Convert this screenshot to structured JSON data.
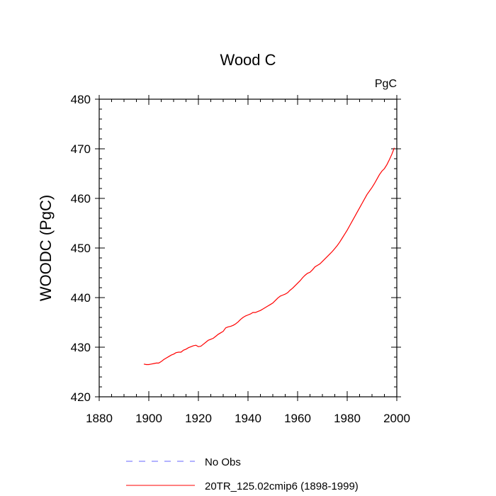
{
  "chart_data": {
    "type": "line",
    "title": "Wood C",
    "subtitle": "PgC",
    "xlabel": "",
    "ylabel": "WOODC  (PgC)",
    "xlim": [
      1880,
      2000
    ],
    "ylim": [
      420,
      480
    ],
    "xticks": [
      1880,
      1900,
      1920,
      1940,
      1960,
      1980,
      2000
    ],
    "yticks": [
      420,
      430,
      440,
      450,
      460,
      470,
      480
    ],
    "grid": false,
    "legend_position": "bottom",
    "colors": {
      "model": "#ff0000",
      "obs": "#0000ff"
    },
    "legend": [
      {
        "label": "No Obs",
        "style": "dashed",
        "color": "#0000ff"
      },
      {
        "label": "20TR_125.02cmip6 (1898-1999)",
        "style": "solid",
        "color": "#ff0000"
      }
    ],
    "series": [
      {
        "name": "20TR_125.02cmip6 (1898-1999)",
        "x": [
          1898,
          1899,
          1900,
          1901,
          1902,
          1903,
          1904,
          1905,
          1906,
          1907,
          1908,
          1909,
          1910,
          1911,
          1912,
          1913,
          1914,
          1915,
          1916,
          1917,
          1918,
          1919,
          1920,
          1921,
          1922,
          1923,
          1924,
          1925,
          1926,
          1927,
          1928,
          1929,
          1930,
          1931,
          1932,
          1933,
          1934,
          1935,
          1936,
          1937,
          1938,
          1939,
          1940,
          1941,
          1942,
          1943,
          1944,
          1945,
          1946,
          1947,
          1948,
          1949,
          1950,
          1951,
          1952,
          1953,
          1954,
          1955,
          1956,
          1957,
          1958,
          1959,
          1960,
          1961,
          1962,
          1963,
          1964,
          1965,
          1966,
          1967,
          1968,
          1969,
          1970,
          1971,
          1972,
          1973,
          1974,
          1975,
          1976,
          1977,
          1978,
          1979,
          1980,
          1981,
          1982,
          1983,
          1984,
          1985,
          1986,
          1987,
          1988,
          1989,
          1990,
          1991,
          1992,
          1993,
          1994,
          1995,
          1996,
          1997,
          1998,
          1999
        ],
        "y": [
          426.6,
          426.5,
          426.5,
          426.6,
          426.7,
          426.8,
          426.8,
          427.1,
          427.5,
          427.8,
          428.1,
          428.4,
          428.6,
          428.9,
          429.0,
          429.0,
          429.4,
          429.6,
          429.9,
          430.1,
          430.3,
          430.4,
          430.1,
          430.2,
          430.6,
          431.0,
          431.4,
          431.6,
          431.8,
          432.2,
          432.6,
          432.9,
          433.2,
          433.9,
          434.1,
          434.2,
          434.4,
          434.7,
          435.1,
          435.6,
          436.0,
          436.3,
          436.5,
          436.7,
          437.0,
          437.0,
          437.2,
          437.4,
          437.7,
          438.0,
          438.3,
          438.6,
          438.9,
          439.4,
          439.9,
          440.3,
          440.5,
          440.7,
          441.0,
          441.5,
          441.9,
          442.4,
          442.9,
          443.4,
          444.0,
          444.5,
          444.9,
          445.1,
          445.6,
          446.2,
          446.5,
          446.8,
          447.3,
          447.8,
          448.3,
          448.8,
          449.3,
          449.9,
          450.5,
          451.2,
          452.0,
          452.8,
          453.6,
          454.5,
          455.4,
          456.3,
          457.2,
          458.1,
          459.0,
          459.9,
          460.8,
          461.5,
          462.2,
          463.0,
          463.9,
          464.8,
          465.5,
          466.0,
          466.8,
          467.8,
          468.9,
          470.2
        ]
      }
    ]
  }
}
